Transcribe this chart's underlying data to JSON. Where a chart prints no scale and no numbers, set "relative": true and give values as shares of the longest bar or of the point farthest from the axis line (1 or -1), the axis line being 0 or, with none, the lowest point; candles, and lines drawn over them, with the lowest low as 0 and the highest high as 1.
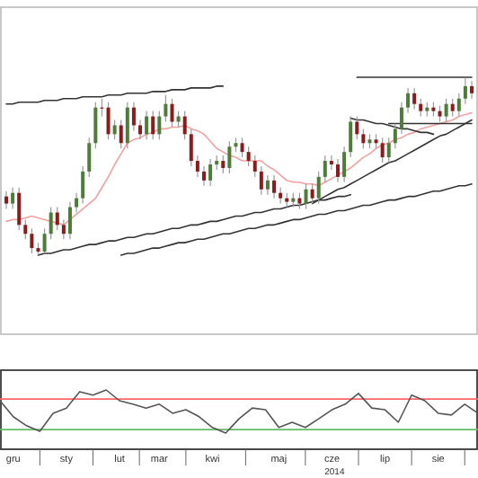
{
  "chart_data": [
    {
      "type": "candlestick",
      "relative": true,
      "tick_labels": false,
      "categories": [
        null,
        null,
        null,
        null,
        null,
        null,
        null,
        null,
        null,
        null,
        null,
        null,
        null,
        null,
        null,
        null,
        null,
        null,
        null,
        null,
        null,
        null,
        null,
        null,
        null,
        null,
        null,
        null,
        null,
        null,
        null,
        null,
        null,
        null,
        null,
        null,
        null,
        null,
        null,
        null,
        null,
        null,
        null,
        null,
        null,
        null,
        null,
        null,
        null,
        null,
        null,
        null,
        null,
        null,
        null,
        null,
        null,
        null,
        null,
        null,
        null,
        null,
        null,
        null,
        null,
        null,
        null,
        null,
        null,
        null,
        null,
        null,
        null,
        null
      ],
      "ohlc": [
        [
          0.33,
          0.36,
          0.26,
          0.29
        ],
        [
          0.29,
          0.38,
          0.26,
          0.35
        ],
        [
          0.35,
          0.38,
          0.14,
          0.17
        ],
        [
          0.17,
          0.2,
          0.09,
          0.12
        ],
        [
          0.12,
          0.15,
          0.01,
          0.04
        ],
        [
          0.04,
          0.07,
          0,
          0.02
        ],
        [
          0.02,
          0.15,
          0.01,
          0.12
        ],
        [
          0.12,
          0.27,
          0.09,
          0.24
        ],
        [
          0.24,
          0.27,
          0.14,
          0.17
        ],
        [
          0.17,
          0.2,
          0.09,
          0.12
        ],
        [
          0.12,
          0.3,
          0.09,
          0.27
        ],
        [
          0.27,
          0.35,
          0.24,
          0.32
        ],
        [
          0.32,
          0.5,
          0.29,
          0.47
        ],
        [
          0.47,
          0.66,
          0.44,
          0.63
        ],
        [
          0.63,
          0.86,
          0.6,
          0.83
        ],
        [
          0.83,
          0.88,
          0.78,
          0.83
        ],
        [
          0.83,
          0.86,
          0.65,
          0.68
        ],
        [
          0.68,
          0.76,
          0.65,
          0.73
        ],
        [
          0.73,
          0.76,
          0.6,
          0.63
        ],
        [
          0.63,
          0.86,
          0.6,
          0.83
        ],
        [
          0.83,
          0.86,
          0.7,
          0.73
        ],
        [
          0.73,
          0.76,
          0.65,
          0.68
        ],
        [
          0.68,
          0.81,
          0.65,
          0.78
        ],
        [
          0.78,
          0.81,
          0.65,
          0.68
        ],
        [
          0.68,
          0.81,
          0.65,
          0.78
        ],
        [
          0.78,
          0.9,
          0.75,
          0.85
        ],
        [
          0.85,
          0.88,
          0.72,
          0.75
        ],
        [
          0.75,
          0.81,
          0.72,
          0.78
        ],
        [
          0.78,
          0.81,
          0.65,
          0.68
        ],
        [
          0.68,
          0.71,
          0.5,
          0.53
        ],
        [
          0.53,
          0.56,
          0.44,
          0.47
        ],
        [
          0.47,
          0.5,
          0.39,
          0.42
        ],
        [
          0.42,
          0.54,
          0.39,
          0.51
        ],
        [
          0.51,
          0.56,
          0.48,
          0.53
        ],
        [
          0.53,
          0.56,
          0.46,
          0.49
        ],
        [
          0.49,
          0.64,
          0.46,
          0.61
        ],
        [
          0.61,
          0.66,
          0.58,
          0.63
        ],
        [
          0.63,
          0.66,
          0.55,
          0.58
        ],
        [
          0.58,
          0.61,
          0.5,
          0.53
        ],
        [
          0.53,
          0.56,
          0.44,
          0.47
        ],
        [
          0.47,
          0.5,
          0.34,
          0.37
        ],
        [
          0.37,
          0.45,
          0.34,
          0.42
        ],
        [
          0.42,
          0.45,
          0.32,
          0.35
        ],
        [
          0.35,
          0.38,
          0.29,
          0.32
        ],
        [
          0.32,
          0.35,
          0.27,
          0.3
        ],
        [
          0.3,
          0.35,
          0.27,
          0.32
        ],
        [
          0.32,
          0.35,
          0.26,
          0.29
        ],
        [
          0.29,
          0.4,
          0.26,
          0.37
        ],
        [
          0.37,
          0.4,
          0.29,
          0.32
        ],
        [
          0.32,
          0.47,
          0.29,
          0.44
        ],
        [
          0.44,
          0.56,
          0.41,
          0.53
        ],
        [
          0.53,
          0.56,
          0.48,
          0.51
        ],
        [
          0.51,
          0.54,
          0.41,
          0.44
        ],
        [
          0.44,
          0.61,
          0.41,
          0.58
        ],
        [
          0.58,
          0.78,
          0.55,
          0.75
        ],
        [
          0.75,
          0.78,
          0.65,
          0.68
        ],
        [
          0.68,
          0.71,
          0.6,
          0.63
        ],
        [
          0.63,
          0.68,
          0.6,
          0.65
        ],
        [
          0.65,
          0.68,
          0.6,
          0.63
        ],
        [
          0.63,
          0.66,
          0.52,
          0.55
        ],
        [
          0.55,
          0.66,
          0.52,
          0.63
        ],
        [
          0.63,
          0.74,
          0.6,
          0.71
        ],
        [
          0.71,
          0.86,
          0.68,
          0.83
        ],
        [
          0.83,
          0.94,
          0.8,
          0.91
        ],
        [
          0.91,
          0.94,
          0.82,
          0.85
        ],
        [
          0.85,
          0.88,
          0.78,
          0.81
        ],
        [
          0.81,
          0.86,
          0.78,
          0.83
        ],
        [
          0.83,
          0.86,
          0.78,
          0.81
        ],
        [
          0.81,
          0.84,
          0.75,
          0.78
        ],
        [
          0.78,
          0.88,
          0.75,
          0.85
        ],
        [
          0.85,
          0.88,
          0.78,
          0.81
        ],
        [
          0.81,
          0.91,
          0.78,
          0.88
        ],
        [
          0.88,
          1,
          0.85,
          0.95
        ],
        [
          0.95,
          0.98,
          0.88,
          0.91
        ]
      ],
      "colors": [
        "#8a1c1c",
        "#4e7d3a",
        "#8a1c1c",
        "#8a1c1c",
        "#8a1c1c",
        "#8a1c1c",
        "#4e7d3a",
        "#4e7d3a",
        "#8a1c1c",
        "#8a1c1c",
        "#4e7d3a",
        "#4e7d3a",
        "#4e7d3a",
        "#4e7d3a",
        "#4e7d3a",
        "#8a1c1c",
        "#8a1c1c",
        "#4e7d3a",
        "#8a1c1c",
        "#4e7d3a",
        "#8a1c1c",
        "#8a1c1c",
        "#4e7d3a",
        "#8a1c1c",
        "#4e7d3a",
        "#4e7d3a",
        "#8a1c1c",
        "#4e7d3a",
        "#8a1c1c",
        "#8a1c1c",
        "#8a1c1c",
        "#8a1c1c",
        "#4e7d3a",
        "#4e7d3a",
        "#8a1c1c",
        "#4e7d3a",
        "#4e7d3a",
        "#8a1c1c",
        "#8a1c1c",
        "#8a1c1c",
        "#8a1c1c",
        "#4e7d3a",
        "#8a1c1c",
        "#8a1c1c",
        "#8a1c1c",
        "#4e7d3a",
        "#8a1c1c",
        "#4e7d3a",
        "#8a1c1c",
        "#4e7d3a",
        "#4e7d3a",
        "#8a1c1c",
        "#8a1c1c",
        "#4e7d3a",
        "#4e7d3a",
        "#8a1c1c",
        "#8a1c1c",
        "#4e7d3a",
        "#8a1c1c",
        "#8a1c1c",
        "#4e7d3a",
        "#4e7d3a",
        "#4e7d3a",
        "#4e7d3a",
        "#8a1c1c",
        "#8a1c1c",
        "#4e7d3a",
        "#8a1c1c",
        "#8a1c1c",
        "#4e7d3a",
        "#8a1c1c",
        "#4e7d3a",
        "#4e7d3a",
        "#8a1c1c"
      ],
      "series": [
        {
          "type": "line",
          "color": "#f4a0a0",
          "values": [
            0.19,
            0.2,
            0.2,
            0.21,
            0.22,
            0.21,
            0.2,
            0.19,
            0.18,
            0.17,
            0.2,
            0.23,
            0.26,
            0.29,
            0.32,
            0.38,
            0.44,
            0.51,
            0.57,
            0.63,
            0.65,
            0.66,
            0.68,
            0.69,
            0.71,
            0.71,
            0.72,
            0.72,
            0.73,
            0.71,
            0.7,
            0.68,
            0.64,
            0.6,
            0.58,
            0.56,
            0.55,
            0.53,
            0.53,
            0.53,
            0.53,
            0.5,
            0.48,
            0.45,
            0.42,
            0.41,
            0.41,
            0.4,
            0.4,
            0.39,
            0.41,
            0.43,
            0.45,
            0.47,
            0.49,
            0.52,
            0.55,
            0.57,
            0.6,
            0.62,
            0.63,
            0.65,
            0.66,
            0.68,
            0.69,
            0.71,
            0.72,
            0.73,
            0.74,
            0.75,
            0.76,
            0.78,
            0.79,
            0.8
          ]
        },
        {
          "type": "line",
          "color": "#333333",
          "values": [
            0.85,
            0.85,
            0.86,
            0.86,
            0.86,
            0.86,
            0.87,
            0.87,
            0.87,
            0.88,
            0.88,
            0.88,
            0.89,
            0.89,
            0.89,
            0.89,
            0.9,
            0.9,
            0.9,
            0.91,
            0.91,
            0.91,
            0.91,
            0.92,
            0.92,
            0.92,
            0.93,
            0.93,
            0.93,
            0.94,
            0.94,
            0.94,
            0.94,
            0.95,
            0.95,
            null,
            null,
            null,
            null,
            null,
            null,
            null,
            null,
            null,
            null,
            null,
            null,
            null,
            null,
            null,
            null,
            null,
            null,
            null,
            null,
            null,
            null,
            null,
            null,
            null,
            null,
            null,
            null,
            null,
            null,
            null,
            null,
            null,
            null,
            null,
            null,
            null,
            null,
            null
          ]
        },
        {
          "type": "line",
          "color": "#333333",
          "values": [
            null,
            null,
            null,
            null,
            null,
            0,
            0.01,
            0.01,
            0.02,
            0.03,
            0.03,
            0.04,
            0.05,
            0.06,
            0.06,
            0.07,
            0.08,
            0.08,
            0.09,
            0.1,
            0.1,
            0.11,
            0.12,
            0.12,
            0.13,
            0.14,
            0.15,
            0.15,
            0.16,
            0.17,
            0.17,
            0.18,
            0.19,
            0.19,
            0.2,
            0.21,
            0.22,
            0.22,
            0.23,
            0.24,
            0.24,
            0.25,
            0.26,
            0.26,
            0.27,
            0.28,
            0.28,
            0.29,
            0.3,
            0.31,
            0.31,
            0.32,
            0.33,
            0.33,
            0.34,
            null,
            null,
            null,
            null,
            null,
            null,
            null,
            null,
            null,
            null,
            null,
            null,
            null,
            null,
            null,
            null,
            null,
            null,
            null
          ]
        },
        {
          "type": "line",
          "color": "#333333",
          "values": [
            null,
            null,
            null,
            null,
            null,
            null,
            null,
            null,
            null,
            null,
            null,
            null,
            null,
            null,
            null,
            null,
            null,
            null,
            0,
            0.01,
            0.01,
            0.02,
            0.03,
            0.04,
            0.04,
            0.05,
            0.06,
            0.07,
            0.07,
            0.08,
            0.09,
            0.09,
            0.1,
            0.11,
            0.12,
            0.12,
            0.13,
            0.14,
            0.15,
            0.15,
            0.16,
            0.17,
            0.17,
            0.18,
            0.19,
            0.2,
            0.2,
            0.21,
            0.22,
            0.23,
            0.23,
            0.24,
            0.25,
            0.25,
            0.26,
            0.27,
            0.28,
            0.28,
            0.29,
            0.3,
            0.31,
            0.31,
            0.32,
            0.33,
            0.33,
            0.34,
            0.35,
            0.36,
            0.36,
            0.37,
            0.38,
            0.39,
            0.39,
            0.4
          ]
        },
        {
          "type": "line",
          "color": "#333333",
          "values": [
            null,
            null,
            null,
            null,
            null,
            null,
            null,
            null,
            null,
            null,
            null,
            null,
            null,
            null,
            null,
            null,
            null,
            null,
            null,
            null,
            null,
            null,
            null,
            null,
            null,
            null,
            null,
            null,
            null,
            null,
            null,
            null,
            null,
            null,
            null,
            null,
            null,
            null,
            null,
            null,
            null,
            null,
            null,
            null,
            null,
            null,
            null,
            null,
            0.29,
            0.31,
            0.33,
            0.35,
            0.37,
            0.38,
            0.4,
            0.42,
            0.44,
            0.46,
            0.48,
            0.5,
            0.52,
            0.53,
            0.55,
            0.57,
            0.59,
            0.61,
            0.63,
            0.65,
            0.67,
            0.68,
            0.7,
            0.72,
            0.74,
            0.76
          ]
        },
        {
          "type": "line",
          "color": "#333333",
          "values": [
            null,
            null,
            null,
            null,
            null,
            null,
            null,
            null,
            null,
            null,
            null,
            null,
            null,
            null,
            null,
            null,
            null,
            null,
            null,
            null,
            null,
            null,
            null,
            null,
            null,
            null,
            null,
            null,
            null,
            null,
            null,
            null,
            null,
            null,
            null,
            null,
            null,
            null,
            null,
            null,
            null,
            null,
            null,
            null,
            null,
            null,
            null,
            null,
            null,
            null,
            null,
            null,
            null,
            null,
            null,
            1,
            1,
            1,
            1,
            1,
            1,
            1,
            1,
            1,
            1,
            1,
            1,
            1,
            1,
            1,
            1,
            1,
            1,
            1
          ]
        },
        {
          "type": "line",
          "color": "#333333",
          "values": [
            null,
            null,
            null,
            null,
            null,
            null,
            null,
            null,
            null,
            null,
            null,
            null,
            null,
            null,
            null,
            null,
            null,
            null,
            null,
            null,
            null,
            null,
            null,
            null,
            null,
            null,
            null,
            null,
            null,
            null,
            null,
            null,
            null,
            null,
            null,
            null,
            null,
            null,
            null,
            null,
            null,
            null,
            null,
            null,
            null,
            null,
            null,
            null,
            null,
            null,
            null,
            null,
            null,
            null,
            null,
            null,
            null,
            null,
            null,
            null,
            0.74,
            0.74,
            0.74,
            0.74,
            0.74,
            0.74,
            0.74,
            0.74,
            0.74,
            0.74,
            0.74,
            0.74,
            0.74,
            0.74
          ]
        },
        {
          "type": "line",
          "color": "#333333",
          "values": [
            null,
            null,
            null,
            null,
            null,
            null,
            null,
            null,
            null,
            null,
            null,
            null,
            null,
            null,
            null,
            null,
            null,
            null,
            null,
            null,
            null,
            null,
            null,
            null,
            null,
            null,
            null,
            null,
            null,
            null,
            null,
            null,
            null,
            null,
            null,
            null,
            null,
            null,
            null,
            null,
            null,
            null,
            null,
            null,
            null,
            null,
            null,
            null,
            null,
            null,
            null,
            null,
            null,
            null,
            0.77,
            0.76,
            0.76,
            0.75,
            0.74,
            0.74,
            0.73,
            0.72,
            0.71,
            0.71,
            0.7,
            0.69,
            0.69,
            0.68,
            null,
            null,
            null,
            null,
            null,
            null
          ]
        }
      ]
    },
    {
      "type": "line",
      "relative": true,
      "tick_labels": "x",
      "color": "#555555",
      "categories": [
        null,
        "gru",
        null,
        null,
        null,
        "sty",
        null,
        null,
        null,
        "lut",
        null,
        null,
        "mar",
        null,
        null,
        null,
        "kwi",
        null,
        null,
        null,
        null,
        "maj",
        null,
        null,
        null,
        "cze",
        null,
        null,
        null,
        "lip",
        null,
        null,
        null,
        "sie",
        null,
        null,
        null
      ],
      "values": [
        0.75,
        0.38,
        0.17,
        0.04,
        0.46,
        0.58,
        0.96,
        0.88,
        1,
        0.75,
        0.67,
        0.58,
        0.67,
        0.46,
        0.54,
        0.38,
        0.13,
        0,
        0.33,
        0.58,
        0.54,
        0.13,
        0.25,
        0.13,
        0.33,
        0.54,
        0.67,
        0.92,
        0.58,
        0.54,
        0.25,
        0.88,
        0.75,
        0.46,
        0.42,
        0.67,
        0.46
      ],
      "ref_lines": [
        {
          "axis": "y",
          "value": 0.79,
          "color": "#ff6666"
        },
        {
          "axis": "y",
          "value": 0.08,
          "color": "#66bb66"
        }
      ],
      "annotations": [
        "2014"
      ]
    }
  ]
}
